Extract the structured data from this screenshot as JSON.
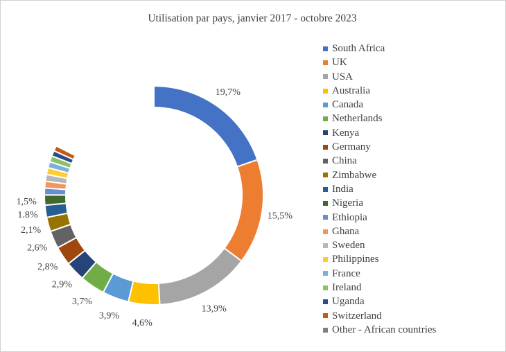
{
  "chart_data": {
    "type": "pie",
    "donut": true,
    "title": "Utilisation  par pays, janvier  2017 - octobre 2023",
    "legend_position": "right",
    "slices": [
      {
        "name": "South Africa",
        "value": 19.7,
        "label": "19,7%",
        "color": "#4472C4"
      },
      {
        "name": "UK",
        "value": 15.5,
        "label": "15,5%",
        "color": "#ED7D31"
      },
      {
        "name": "USA",
        "value": 13.9,
        "label": "13,9%",
        "color": "#A5A5A5"
      },
      {
        "name": "Australia",
        "value": 4.6,
        "label": "4,6%",
        "color": "#FFC000"
      },
      {
        "name": "Canada",
        "value": 3.9,
        "label": "3,9%",
        "color": "#5B9BD5"
      },
      {
        "name": "Netherlands",
        "value": 3.7,
        "label": "3,7%",
        "color": "#70AD47"
      },
      {
        "name": "Kenya",
        "value": 2.9,
        "label": "2,9%",
        "color": "#264478"
      },
      {
        "name": "Germany",
        "value": 2.8,
        "label": "2,8%",
        "color": "#9E480E"
      },
      {
        "name": "China",
        "value": 2.6,
        "label": "2,6%",
        "color": "#636363"
      },
      {
        "name": "Zimbabwe",
        "value": 2.1,
        "label": "2,1%",
        "color": "#997300"
      },
      {
        "name": "India",
        "value": 1.8,
        "label": "1.8%",
        "color": "#255E91"
      },
      {
        "name": "Nigeria",
        "value": 1.5,
        "label": "1,5%",
        "color": "#43682B"
      },
      {
        "name": "Ethiopia",
        "value": 1.0,
        "label": "",
        "color": "#698ED0"
      },
      {
        "name": "Ghana",
        "value": 1.0,
        "label": "",
        "color": "#F1975A"
      },
      {
        "name": "Sweden",
        "value": 1.0,
        "label": "",
        "color": "#B7B7B7"
      },
      {
        "name": "Philippines",
        "value": 1.0,
        "label": "",
        "color": "#FFCD33"
      },
      {
        "name": "France",
        "value": 0.9,
        "label": "",
        "color": "#7CAFDD"
      },
      {
        "name": "Ireland",
        "value": 0.9,
        "label": "",
        "color": "#8CC168"
      },
      {
        "name": "Uganda",
        "value": 0.8,
        "label": "",
        "color": "#2A4C8E"
      },
      {
        "name": "Switzerland",
        "value": 0.8,
        "label": "",
        "color": "#C55A11"
      },
      {
        "name": "Other - African countries",
        "value": 17.5,
        "label": "",
        "color": "#FFFFFF"
      }
    ]
  }
}
